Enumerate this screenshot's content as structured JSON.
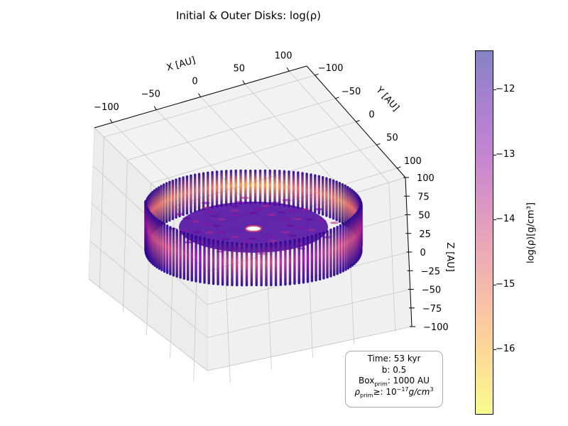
{
  "title": "Initial & Outer Disks: log(ρ)",
  "chart_data": {
    "type": "scatter3d",
    "title": "Initial & Outer Disks: log(ρ)",
    "xlabel": "X [AU]",
    "ylabel": "Y [AU]",
    "zlabel": "Z [AU]",
    "xlim": [
      -120,
      120
    ],
    "ylim": [
      -120,
      120
    ],
    "zlim": [
      -100,
      100
    ],
    "x_ticks": [
      "−100",
      "−50",
      "0",
      "50",
      "100"
    ],
    "y_ticks": [
      "−100",
      "−50",
      "0",
      "50",
      "100"
    ],
    "z_ticks": [
      "100",
      "75",
      "50",
      "25",
      "0",
      "−25",
      "−50",
      "−75",
      "−100"
    ],
    "colormap": "plasma",
    "colorbar": {
      "label": "log(ρ)[g/cm³]",
      "range": [
        -17.0,
        -11.4
      ],
      "ticks": [
        "−12",
        "−13",
        "−14",
        "−15",
        "−16"
      ],
      "tick_values": [
        -12,
        -13,
        -14,
        -15,
        -16
      ]
    },
    "disk": {
      "shape": "torus",
      "outer_radius_au": 115,
      "inner_radius_au": 8,
      "vertical_extent_au": [
        -35,
        35
      ],
      "log_rho_range": [
        -17,
        -12.5
      ]
    },
    "grid": true
  },
  "infobox": {
    "time": "Time: 53 kyr",
    "b": "b: 0.5",
    "box_prefix": "Box",
    "box_sub": "prim",
    "box_value": ": 1000 AU",
    "rho_prefix": "ρ",
    "rho_sub": "prim",
    "rho_mid": "≥: 10",
    "rho_sup": "−17",
    "rho_unit": "g/cm",
    "rho_unit_sup": "3"
  },
  "colors": {
    "pane": "#f2f2f2",
    "grid": "#c8c8c8",
    "disk_dark": "#2a0594",
    "disk_mid": "#8a1aa8",
    "disk_bright": "#e0607a"
  }
}
